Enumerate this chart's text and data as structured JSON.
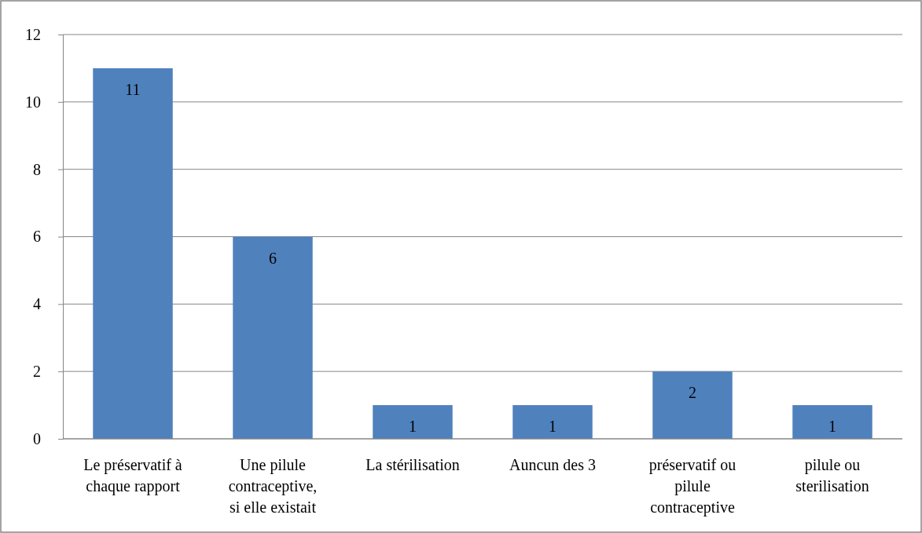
{
  "chart_data": {
    "type": "bar",
    "categories": [
      "Le préservatif à\nchaque rapport",
      "Une pilule\ncontraceptive,\nsi elle existait",
      "La stérilisation",
      "Auncun des 3",
      "préservatif ou\npilule\ncontraceptive",
      "pilule ou\nsterilisation"
    ],
    "values": [
      11,
      6,
      1,
      1,
      2,
      1
    ],
    "color": "#4f81bd",
    "ylim": [
      0,
      12
    ],
    "yticks": [
      0,
      2,
      4,
      6,
      8,
      10,
      12
    ],
    "grid": "y",
    "data_labels": true
  }
}
